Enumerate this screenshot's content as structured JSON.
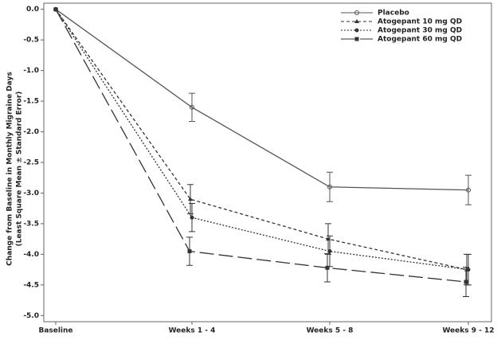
{
  "chart_data": {
    "type": "line",
    "y_label": [
      "Change from Baseline in Monthly Migraine Days",
      "(Least Square Mean ± Standard Error)"
    ],
    "categories": [
      "Baseline",
      "Weeks 1 - 4",
      "Weeks 5 - 8",
      "Weeks 9 - 12"
    ],
    "series": [
      {
        "name": "Placebo",
        "color": "#555555",
        "values": [
          0,
          -1.6,
          -2.9,
          -2.95
        ],
        "errors": [
          null,
          0.23,
          0.24,
          0.24
        ]
      },
      {
        "name": "Atogepant 10 mg QD",
        "color": "#333333",
        "values": [
          0,
          -3.1,
          -3.75,
          -4.25
        ],
        "errors": [
          null,
          0.24,
          0.25,
          0.25
        ]
      },
      {
        "name": "Atogepant 30 mg QD",
        "color": "#333333",
        "values": [
          0,
          -3.4,
          -3.95,
          -4.25
        ],
        "errors": [
          null,
          0.23,
          0.25,
          0.25
        ]
      },
      {
        "name": "Atogepant 60 mg QD",
        "color": "#333333",
        "values": [
          0,
          -3.95,
          -4.22,
          -4.45
        ],
        "errors": [
          null,
          0.23,
          0.23,
          0.24
        ]
      }
    ],
    "ylim": [
      -5.1,
      0.1
    ],
    "yticks": [
      {
        "value": 0,
        "label": "0.0"
      },
      -0.5,
      {
        "value": -1,
        "label": "-1.0"
      },
      -1.5,
      {
        "value": -2,
        "label": "-2.0"
      },
      -2.5,
      {
        "value": -3,
        "label": "-3.0"
      },
      -3.5,
      {
        "value": -4,
        "label": "-4.0"
      },
      -4.5,
      {
        "value": -5,
        "label": "-5.0"
      }
    ],
    "legend": "upper right"
  }
}
